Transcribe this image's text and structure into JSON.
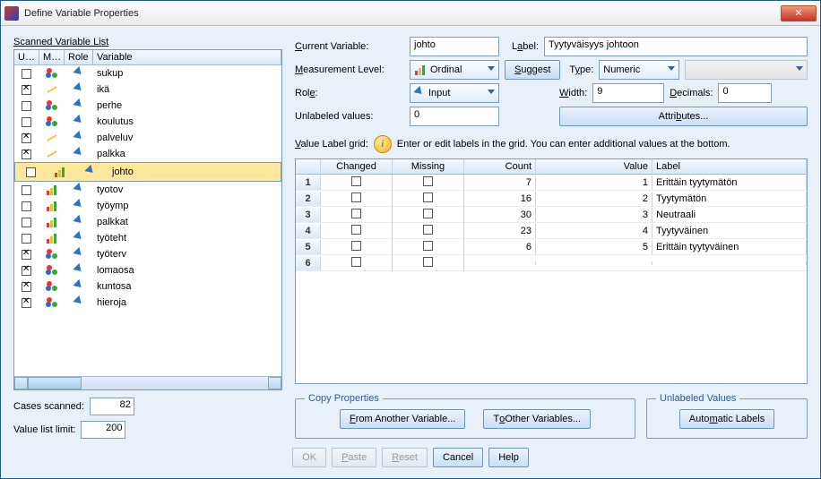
{
  "window": {
    "title": "Define Variable Properties"
  },
  "left": {
    "header": "Scanned Variable List",
    "columns": {
      "un": "Un...",
      "me": "Me...",
      "ro": "Role",
      "va": "Variable"
    },
    "rows": [
      {
        "unlabeled": false,
        "measure": "nominal",
        "role": "input",
        "name": "sukup",
        "selected": false
      },
      {
        "unlabeled": true,
        "measure": "scale",
        "role": "input",
        "name": "ikä",
        "selected": false
      },
      {
        "unlabeled": false,
        "measure": "nominal",
        "role": "input",
        "name": "perhe",
        "selected": false
      },
      {
        "unlabeled": false,
        "measure": "nominal",
        "role": "input",
        "name": "koulutus",
        "selected": false
      },
      {
        "unlabeled": true,
        "measure": "scale",
        "role": "input",
        "name": "palveluv",
        "selected": false
      },
      {
        "unlabeled": true,
        "measure": "scale",
        "role": "input",
        "name": "palkka",
        "selected": false
      },
      {
        "unlabeled": false,
        "measure": "ordinal",
        "role": "input",
        "name": "johto",
        "selected": true
      },
      {
        "unlabeled": false,
        "measure": "ordinal",
        "role": "input",
        "name": "tyotov",
        "selected": false
      },
      {
        "unlabeled": false,
        "measure": "ordinal",
        "role": "input",
        "name": "työymp",
        "selected": false
      },
      {
        "unlabeled": false,
        "measure": "ordinal",
        "role": "input",
        "name": "palkkat",
        "selected": false
      },
      {
        "unlabeled": false,
        "measure": "ordinal",
        "role": "input",
        "name": "työteht",
        "selected": false
      },
      {
        "unlabeled": true,
        "measure": "nominal",
        "role": "input",
        "name": "työterv",
        "selected": false
      },
      {
        "unlabeled": true,
        "measure": "nominal",
        "role": "input",
        "name": "lomaosa",
        "selected": false
      },
      {
        "unlabeled": true,
        "measure": "nominal",
        "role": "input",
        "name": "kuntosa",
        "selected": false
      },
      {
        "unlabeled": true,
        "measure": "nominal",
        "role": "input",
        "name": "hieroja",
        "selected": false
      }
    ],
    "cases_scanned_label": "Cases scanned:",
    "cases_scanned": "82",
    "value_limit_label": "Value list limit:",
    "value_limit": "200"
  },
  "form": {
    "current_var_label": "Current Variable:",
    "current_var": "johto",
    "label_label": "Label:",
    "label_value": "Tyytyväisyys johtoon",
    "measure_label": "Measurement Level:",
    "measure_value": "Ordinal",
    "suggest": "Suggest",
    "type_label": "Type:",
    "type_value": "Numeric",
    "role_label": "Role:",
    "role_value": "Input",
    "width_label": "Width:",
    "width_value": "9",
    "decimals_label": "Decimals:",
    "decimals_value": "0",
    "unlabeled_label": "Unlabeled values:",
    "unlabeled_value": "0",
    "attributes": "Attributes...",
    "valuegrid_label": "Value Label grid:",
    "valuegrid_hint": "Enter or edit labels in the grid. You can enter additional values at the bottom."
  },
  "grid": {
    "columns": {
      "changed": "Changed",
      "missing": "Missing",
      "count": "Count",
      "value": "Value",
      "label": "Label"
    },
    "rows": [
      {
        "n": "1",
        "changed": false,
        "missing": false,
        "count": "7",
        "value": "1",
        "label": "Erittäin tyytymätön"
      },
      {
        "n": "2",
        "changed": false,
        "missing": false,
        "count": "16",
        "value": "2",
        "label": "Tyytymätön"
      },
      {
        "n": "3",
        "changed": false,
        "missing": false,
        "count": "30",
        "value": "3",
        "label": "Neutraali"
      },
      {
        "n": "4",
        "changed": false,
        "missing": false,
        "count": "23",
        "value": "4",
        "label": "Tyytyväinen"
      },
      {
        "n": "5",
        "changed": false,
        "missing": false,
        "count": "6",
        "value": "5",
        "label": "Erittäin tyytyväinen"
      },
      {
        "n": "6",
        "changed": false,
        "missing": false,
        "count": "",
        "value": "",
        "label": ""
      }
    ]
  },
  "copy": {
    "legend": "Copy Properties",
    "from": "From Another Variable...",
    "to": "To Other Variables..."
  },
  "unlv": {
    "legend": "Unlabeled Values",
    "auto": "Automatic Labels"
  },
  "footer": {
    "ok": "OK",
    "paste": "Paste",
    "reset": "Reset",
    "cancel": "Cancel",
    "help": "Help"
  }
}
